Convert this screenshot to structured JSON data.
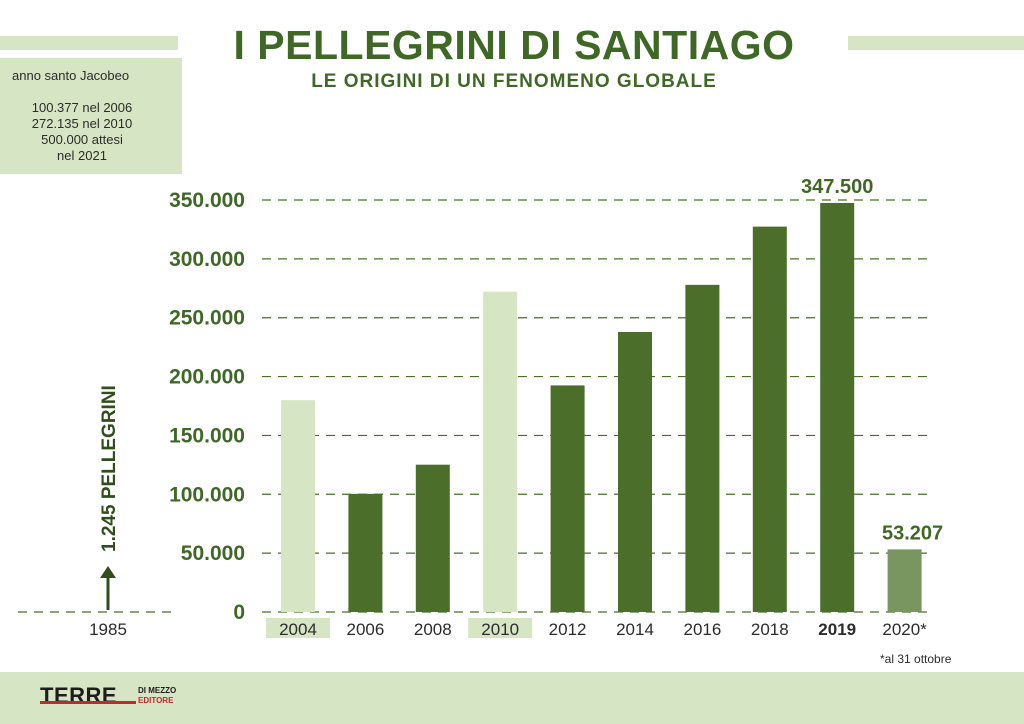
{
  "header": {
    "title": "I PELLEGRINI DI SANTIAGO",
    "subtitle": "LE ORIGINI DI UN FENOMENO GLOBALE"
  },
  "side_box": {
    "heading": "anno santo Jacobeo",
    "lines": [
      "100.377 nel 2006",
      "272.135 nel 2010",
      "500.000 attesi",
      "nel 2021"
    ]
  },
  "chart_data": {
    "type": "bar",
    "title": "I PELLEGRINI DI SANTIAGO",
    "subtitle": "LE ORIGINI DI UN FENOMENO GLOBALE",
    "categories": [
      "2004",
      "2006",
      "2008",
      "2010",
      "2012",
      "2014",
      "2016",
      "2018",
      "2019",
      "2020*"
    ],
    "values": [
      179944,
      100377,
      125141,
      272135,
      192488,
      237886,
      277915,
      327378,
      347500,
      53207
    ],
    "bar_kind": [
      "holy_year",
      "normal",
      "normal",
      "holy_year",
      "normal",
      "normal",
      "normal",
      "normal",
      "normal",
      "partial"
    ],
    "ylim": [
      0,
      350000
    ],
    "yticks": [
      0,
      50000,
      100000,
      150000,
      200000,
      250000,
      300000,
      350000
    ],
    "ytick_labels": [
      "0",
      "50.000",
      "100.000",
      "150.000",
      "200.000",
      "250.000",
      "300.000",
      "350.000"
    ],
    "grid": true,
    "value_labels": [
      {
        "category": "2019",
        "text": "347.500"
      },
      {
        "category": "2020*",
        "text": "53.207"
      }
    ],
    "extra_point": {
      "category": "1985",
      "value": 1245,
      "label": "1.245 PELLEGRINI"
    },
    "colors": {
      "normal": "#4b6f2a",
      "holy_year": "#d6e5c4",
      "partial": "#7a9660",
      "axis_text": "#3f6826",
      "grid": "#4b6f2a"
    }
  },
  "note": "*al 31 ottobre",
  "footer": {
    "logo_main": "TERRE",
    "logo_sub1": "DI MEZZO",
    "logo_sub2": "EDITORE"
  }
}
